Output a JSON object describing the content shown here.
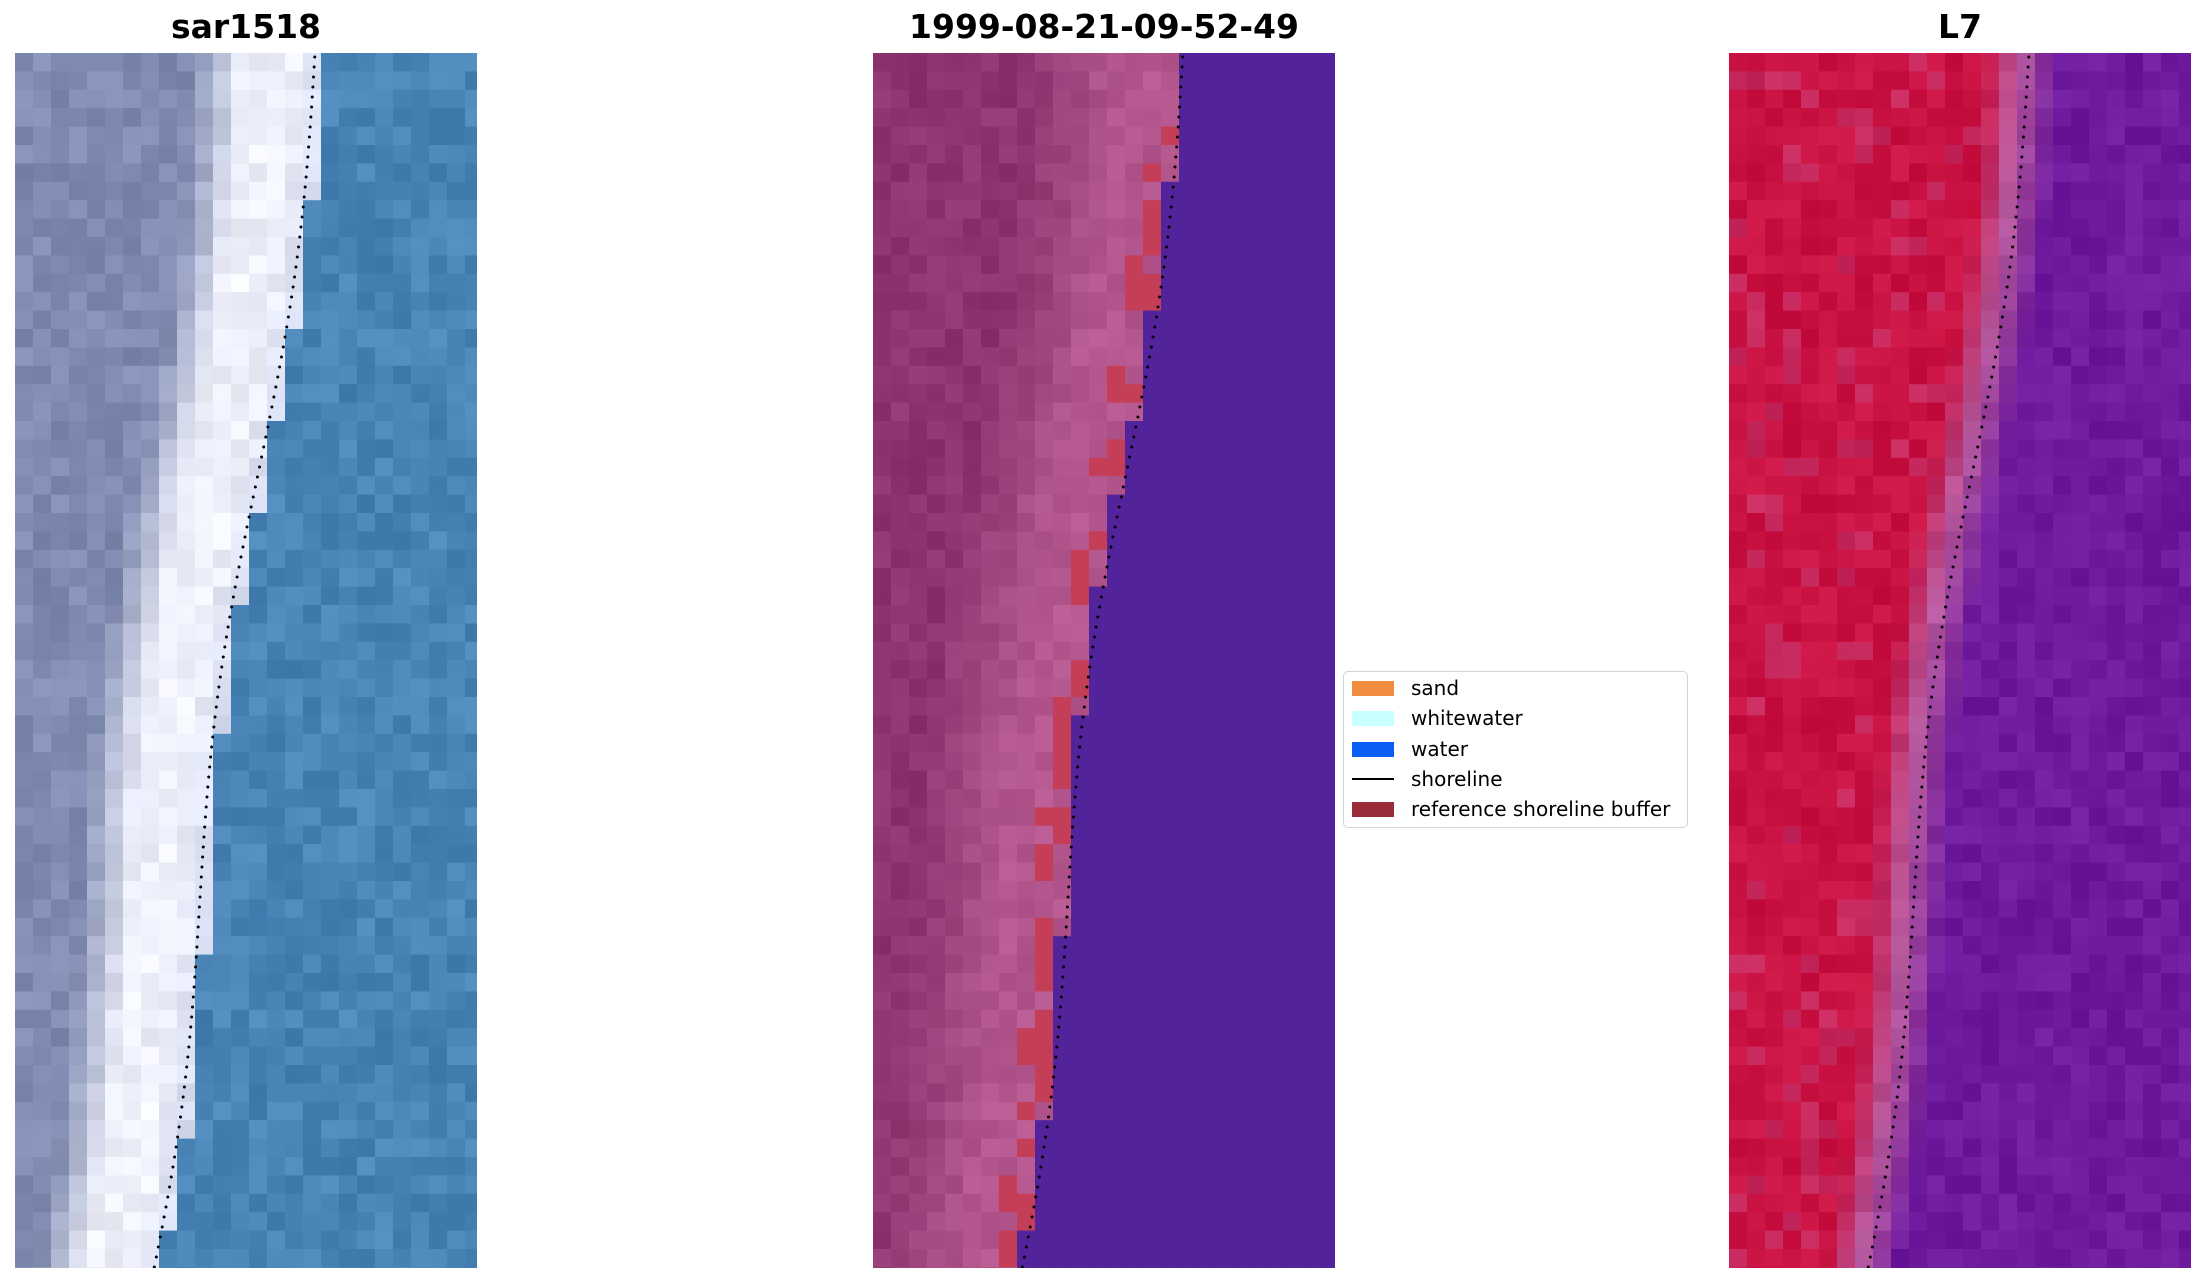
{
  "panels": [
    {
      "title": "sar1518",
      "kind": "rgb"
    },
    {
      "title": "1999-08-21-09-52-49",
      "kind": "classified"
    },
    {
      "title": "L7",
      "kind": "index"
    }
  ],
  "legend": {
    "items": [
      {
        "label": "sand",
        "color": "#f28c3f",
        "type": "patch"
      },
      {
        "label": "whitewater",
        "color": "#c8ffff",
        "type": "patch"
      },
      {
        "label": "water",
        "color": "#0a5ef5",
        "type": "patch"
      },
      {
        "label": "shoreline",
        "color": "#000000",
        "type": "line"
      },
      {
        "label": "reference shoreline buffer",
        "color": "#9a2b3b",
        "type": "patch"
      }
    ]
  },
  "colors": {
    "rgb_land": "#7f8bb0",
    "rgb_beach": "#eef0fb",
    "rgb_water": "#4a84b6",
    "classified_land": "#8e3570",
    "classified_sand_tint": "#b3578e",
    "classified_water": "#52239a",
    "classified_buffer": "#c53e58",
    "index_land": "#c9103f",
    "index_water": "#6e1a9e",
    "shoreline_dots": "#000000"
  }
}
